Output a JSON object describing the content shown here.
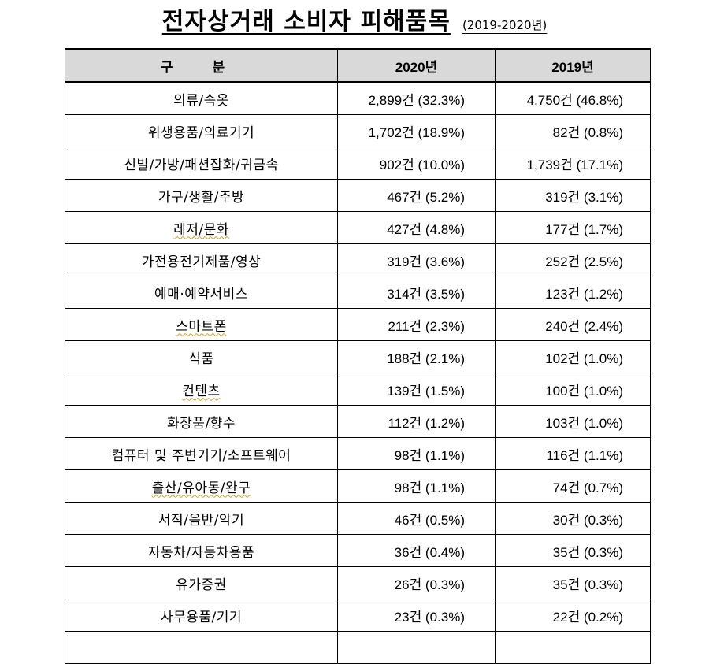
{
  "title": {
    "main": "전자상거래 소비자 피해품목",
    "sub": "(2019-2020년)"
  },
  "table": {
    "headers": [
      "구 분",
      "2020년",
      "2019년"
    ],
    "rows": [
      {
        "category": "의류/속옷",
        "y2020": "2,899건 (32.3%)",
        "y2019": "4,750건 (46.8%)"
      },
      {
        "category": "위생용품/의료기기",
        "y2020": "1,702건 (18.9%)",
        "y2019": "82건 (0.8%)"
      },
      {
        "category": "신발/가방/패션잡화/귀금속",
        "y2020": "902건 (10.0%)",
        "y2019": "1,739건 (17.1%)"
      },
      {
        "category": "가구/생활/주방",
        "y2020": "467건 (5.2%)",
        "y2019": "319건 (3.1%)"
      },
      {
        "category": "레저/문화",
        "y2020": "427건 (4.8%)",
        "y2019": "177건 (1.7%)"
      },
      {
        "category": "가전용전기제품/영상",
        "y2020": "319건 (3.6%)",
        "y2019": "252건 (2.5%)"
      },
      {
        "category": "예매·예약서비스",
        "y2020": "314건 (3.5%)",
        "y2019": "123건 (1.2%)"
      },
      {
        "category": "스마트폰",
        "y2020": "211건 (2.3%)",
        "y2019": "240건 (2.4%)"
      },
      {
        "category": "식품",
        "y2020": "188건 (2.1%)",
        "y2019": "102건 (1.0%)"
      },
      {
        "category": "컨텐츠",
        "y2020": "139건 (1.5%)",
        "y2019": "100건 (1.0%)"
      },
      {
        "category": "화장품/향수",
        "y2020": "112건 (1.2%)",
        "y2019": "103건 (1.0%)"
      },
      {
        "category": "컴퓨터 및 주변기기/소프트웨어",
        "y2020": "98건 (1.1%)",
        "y2019": "116건 (1.1%)"
      },
      {
        "category": "출산/유아동/완구",
        "y2020": "98건 (1.1%)",
        "y2019": "74건 (0.7%)"
      },
      {
        "category": "서적/음반/악기",
        "y2020": "46건 (0.5%)",
        "y2019": "30건 (0.3%)"
      },
      {
        "category": "자동차/자동차용품",
        "y2020": "36건 (0.4%)",
        "y2019": "35건 (0.3%)"
      },
      {
        "category": "유가증권",
        "y2020": "26건 (0.3%)",
        "y2019": "35건 (0.3%)"
      },
      {
        "category": "사무용품/기기",
        "y2020": "23건 (0.3%)",
        "y2019": "22건 (0.2%)"
      }
    ]
  }
}
